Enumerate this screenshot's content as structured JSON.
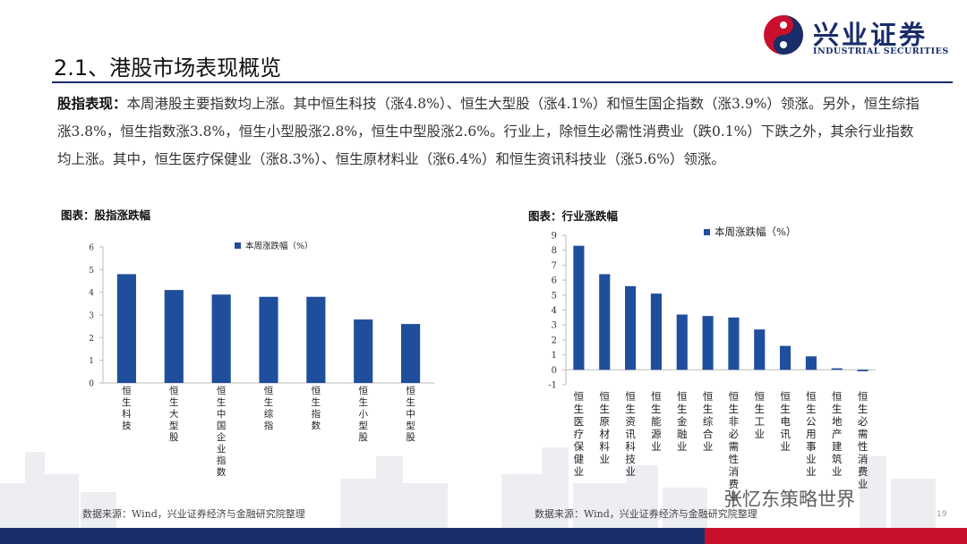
{
  "header": {
    "logo_cn": "兴业证券",
    "logo_en": "INDUSTRIAL SECURITIES",
    "page_title": "2.1、港股市场表现概览"
  },
  "summary": {
    "lead": "股指表现：",
    "text": "本周港股主要指数均上涨。其中恒生科技（涨4.8%）、恒生大型股（涨4.1%）和恒生国企指数（涨3.9%）领涨。另外，恒生综指涨3.8%，恒生指数涨3.8%，恒生小型股涨2.8%，恒生中型股涨2.6%。行业上，除恒生必需性消费业（跌0.1%）下跌之外，其余行业指数均上涨。其中，恒生医疗保健业（涨8.3%）、恒生原材料业（涨6.4%）和恒生资讯科技业（涨5.6%）领涨。"
  },
  "footer": {
    "source_left": "数据来源：Wind，兴业证券经济与金融研究院整理",
    "source_right": "数据来源：Wind，兴业证券经济与金融研究院整理",
    "page_number": "19",
    "watermark": "张忆东策略世界"
  },
  "colors": {
    "bar": "#1f4e9c",
    "brand_blue": "#1a2d6b",
    "brand_red": "#c8102e"
  },
  "chart_data": [
    {
      "type": "bar",
      "caption": "图表：股指涨跌幅",
      "legend": "本周涨跌幅（%）",
      "legend_position": "top",
      "categories": [
        "恒生科技",
        "恒生大型股",
        "恒生中国企业指数",
        "恒生综指",
        "恒生指数",
        "恒生小型股",
        "恒生中型股"
      ],
      "series": [
        {
          "name": "本周涨跌幅（%）",
          "values": [
            4.8,
            4.1,
            3.9,
            3.8,
            3.8,
            2.8,
            2.6
          ]
        }
      ],
      "ylim": [
        0,
        6
      ],
      "yticks": [
        0,
        1,
        2,
        3,
        4,
        5,
        6
      ],
      "grid": false
    },
    {
      "type": "bar",
      "caption": "图表：行业涨跌幅",
      "legend": "本周涨跌幅（%）",
      "legend_position": "top",
      "categories": [
        "恒生医疗保健业",
        "恒生原材料业",
        "恒生资讯科技业",
        "恒生能源业",
        "恒生金融业",
        "恒生综合业",
        "恒生非必需性消费业",
        "恒生工业",
        "恒生电讯业",
        "恒生公用事业业",
        "恒生地产建筑业",
        "恒生必需性消费业"
      ],
      "series": [
        {
          "name": "本周涨跌幅（%）",
          "values": [
            8.3,
            6.4,
            5.6,
            5.1,
            3.7,
            3.6,
            3.5,
            2.7,
            1.6,
            0.9,
            0.1,
            -0.1
          ]
        }
      ],
      "ylim": [
        -1,
        9
      ],
      "yticks": [
        -1,
        0,
        1,
        2,
        3,
        4,
        5,
        6,
        7,
        8,
        9
      ],
      "grid": false
    }
  ]
}
